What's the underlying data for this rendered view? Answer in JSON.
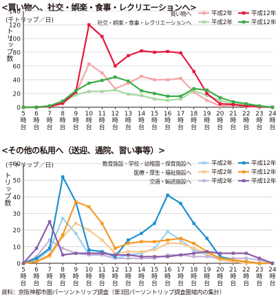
{
  "chart_data": [
    {
      "type": "line",
      "title": "<買い物へ、社交・娯楽・食事・レクリエーションへ>",
      "unit": "(千トリップ／日)",
      "ylabel": "トリップ数",
      "ylim": [
        0,
        140
      ],
      "yticks": [
        "0",
        "20",
        "40",
        "60",
        "80",
        "100",
        "120",
        "140"
      ],
      "categories": [
        "5時台",
        "6時台",
        "7時台",
        "8時台",
        "9時台",
        "10時台",
        "11時台",
        "12時台",
        "13時台",
        "14時台",
        "15時台",
        "16時台",
        "17時台",
        "18時台",
        "19時台",
        "20時台",
        "21時台",
        "22時台",
        "23時台",
        "24時台"
      ],
      "category_labels": [
        [
          "5",
          "時",
          "台"
        ],
        [
          "6",
          "時",
          "台"
        ],
        [
          "7",
          "時",
          "台"
        ],
        [
          "8",
          "時",
          "台"
        ],
        [
          "9",
          "時",
          "台"
        ],
        [
          "10",
          "時",
          "台"
        ],
        [
          "11",
          "時",
          "台"
        ],
        [
          "12",
          "時",
          "台"
        ],
        [
          "13",
          "時",
          "台"
        ],
        [
          "14",
          "時",
          "台"
        ],
        [
          "15",
          "時",
          "台"
        ],
        [
          "16",
          "時",
          "台"
        ],
        [
          "17",
          "時",
          "台"
        ],
        [
          "18",
          "時",
          "台"
        ],
        [
          "19",
          "時",
          "台"
        ],
        [
          "20",
          "時",
          "台"
        ],
        [
          "21",
          "時",
          "台"
        ],
        [
          "22",
          "時",
          "台"
        ],
        [
          "23",
          "時",
          "台"
        ],
        [
          "24",
          "時",
          "台"
        ]
      ],
      "legend_position": "top-right",
      "legend_groups": [
        {
          "label": "買い物へ",
          "series": [
            0,
            1
          ]
        },
        {
          "label": "社交・娯楽・食事・レクリエーションへ",
          "series": [
            2,
            3
          ]
        }
      ],
      "series": [
        {
          "name": "平成2年",
          "color": "#f5a3a8",
          "values": [
            0,
            0,
            1,
            5,
            20,
            63,
            50,
            27,
            35,
            45,
            40,
            40,
            42,
            22,
            10,
            2,
            3,
            1,
            0,
            0
          ]
        },
        {
          "name": "平成12年",
          "color": "#e5173f",
          "values": [
            0,
            0,
            1,
            6,
            22,
            120,
            103,
            60,
            75,
            82,
            80,
            81,
            79,
            52,
            20,
            5,
            4,
            2,
            1,
            0
          ]
        },
        {
          "name": "平成2年",
          "color": "#a8d9a0",
          "values": [
            0,
            0,
            1,
            7,
            18,
            23,
            23,
            25,
            19,
            17,
            12,
            10,
            12,
            24,
            17,
            10,
            5,
            3,
            1,
            0
          ]
        },
        {
          "name": "平成12年",
          "color": "#3cab48",
          "values": [
            0,
            0,
            2,
            9,
            24,
            35,
            39,
            44,
            38,
            24,
            20,
            16,
            16,
            27,
            25,
            14,
            8,
            5,
            2,
            0
          ]
        }
      ]
    },
    {
      "type": "line",
      "title": "<その他の私用へ（送迎、通院、習い事等）>",
      "unit": "(千トリップ／日)",
      "ylabel": "トリップ数",
      "ylim": [
        0,
        60
      ],
      "yticks": [
        "0",
        "10",
        "20",
        "30",
        "40",
        "50",
        "60"
      ],
      "categories": [
        "5時台",
        "6時台",
        "7時台",
        "8時台",
        "9時台",
        "10時台",
        "11時台",
        "12時台",
        "13時台",
        "14時台",
        "15時台",
        "16時台",
        "17時台",
        "18時台",
        "19時台",
        "20時台",
        "21時台",
        "22時台",
        "23時台",
        "24時台"
      ],
      "category_labels": [
        [
          "5",
          "時",
          "台"
        ],
        [
          "6",
          "時",
          "台"
        ],
        [
          "7",
          "時",
          "台"
        ],
        [
          "8",
          "時",
          "台"
        ],
        [
          "9",
          "時",
          "台"
        ],
        [
          "10",
          "時",
          "台"
        ],
        [
          "11",
          "時",
          "台"
        ],
        [
          "12",
          "時",
          "台"
        ],
        [
          "13",
          "時",
          "台"
        ],
        [
          "14",
          "時",
          "台"
        ],
        [
          "15",
          "時",
          "台"
        ],
        [
          "16",
          "時",
          "台"
        ],
        [
          "17",
          "時",
          "台"
        ],
        [
          "18",
          "時",
          "台"
        ],
        [
          "19",
          "時",
          "台"
        ],
        [
          "20",
          "時",
          "台"
        ],
        [
          "21",
          "時",
          "台"
        ],
        [
          "22",
          "時",
          "台"
        ],
        [
          "23",
          "時",
          "台"
        ],
        [
          "24",
          "時",
          "台"
        ]
      ],
      "legend_position": "top-right",
      "legend_groups": [
        {
          "label": "教育施設・学校・幼稚園・保育施設へ",
          "series": [
            0,
            1
          ]
        },
        {
          "label": "医療・厚生・福祉施設へ",
          "series": [
            2,
            3
          ]
        },
        {
          "label": "交通・輸送施設へ",
          "series": [
            4,
            5
          ]
        }
      ],
      "series": [
        {
          "name": "平成2年",
          "color": "#9dd0ee",
          "values": [
            0,
            2,
            8,
            27,
            18,
            5,
            5,
            3,
            5,
            6,
            9,
            19,
            14,
            8,
            5,
            2,
            1,
            1,
            0,
            0
          ]
        },
        {
          "name": "平成12年",
          "color": "#1c8fcf",
          "values": [
            0,
            3,
            9,
            52,
            37,
            8,
            7,
            4,
            14,
            18,
            24,
            41,
            36,
            24,
            15,
            4,
            2,
            1,
            0,
            0
          ]
        },
        {
          "name": "平成2年",
          "color": "#f9c98e",
          "values": [
            0,
            1,
            4,
            16,
            24,
            20,
            14,
            6,
            7,
            7,
            8,
            12,
            12,
            9,
            6,
            2,
            1,
            0,
            0,
            0
          ]
        },
        {
          "name": "平成12年",
          "color": "#f39a22",
          "values": [
            0,
            1,
            5,
            17,
            37,
            34,
            24,
            9,
            12,
            13,
            13,
            14,
            15,
            12,
            7,
            3,
            2,
            1,
            0,
            0
          ]
        },
        {
          "name": "平成2年",
          "color": "#c4b3dc",
          "values": [
            0,
            4,
            14,
            9,
            6,
            5,
            5,
            3,
            3,
            3,
            3,
            5,
            5,
            4,
            4,
            3,
            3,
            3,
            2,
            0
          ]
        },
        {
          "name": "平成12年",
          "color": "#8a5da7",
          "values": [
            0,
            9,
            25,
            5,
            6,
            6,
            6,
            5,
            5,
            4,
            4,
            4,
            5,
            6,
            7,
            6,
            6,
            6,
            3,
            0
          ]
        }
      ]
    }
  ],
  "source": "資料：京阪神都市圏パーソントリップ調査（第3回パーソントリップ調査圏域内の集計）"
}
